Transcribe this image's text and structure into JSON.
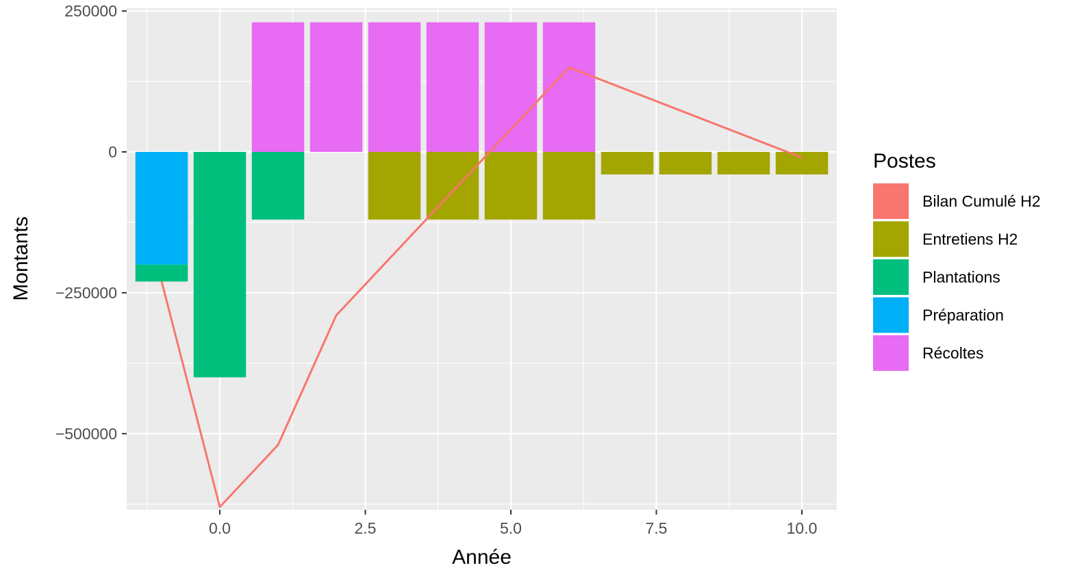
{
  "chart_data": {
    "type": "bar",
    "title": "",
    "xlabel": "Année",
    "ylabel": "Montants",
    "xlim": [
      -1.6,
      10.6
    ],
    "ylim": [
      -635000,
      255000
    ],
    "x_ticks": [
      {
        "value": 0,
        "label": "0.0"
      },
      {
        "value": 2.5,
        "label": "2.5"
      },
      {
        "value": 5,
        "label": "5.0"
      },
      {
        "value": 7.5,
        "label": "7.5"
      },
      {
        "value": 10,
        "label": "10.0"
      }
    ],
    "y_ticks": [
      {
        "value": 250000,
        "label": "250000"
      },
      {
        "value": 0,
        "label": "0"
      },
      {
        "value": -250000,
        "label": "−250000"
      },
      {
        "value": -500000,
        "label": "−500000"
      }
    ],
    "legend": {
      "title": "Postes",
      "position": "right",
      "entries": [
        {
          "name": "Bilan Cumulé H2",
          "color": "#F8766D"
        },
        {
          "name": "Entretiens H2",
          "color": "#A3A500"
        },
        {
          "name": "Plantations",
          "color": "#00BF7D"
        },
        {
          "name": "Préparation",
          "color": "#00B0F6"
        },
        {
          "name": "Récoltes",
          "color": "#E76BF3"
        }
      ]
    },
    "x": [
      -1,
      0,
      1,
      2,
      3,
      4,
      5,
      6,
      7,
      8,
      9,
      10
    ],
    "series": [
      {
        "name": "Entretiens H2",
        "color": "#A3A500",
        "kind": "bar",
        "values": [
          0,
          0,
          0,
          0,
          -120000,
          -120000,
          -120000,
          -120000,
          -40000,
          -40000,
          -40000,
          -40000
        ]
      },
      {
        "name": "Plantations",
        "color": "#00BF7D",
        "kind": "bar",
        "values": [
          -30000,
          -400000,
          -120000,
          0,
          0,
          0,
          0,
          0,
          0,
          0,
          0,
          0
        ]
      },
      {
        "name": "Préparation",
        "color": "#00B0F6",
        "kind": "bar",
        "values": [
          -200000,
          0,
          0,
          0,
          0,
          0,
          0,
          0,
          0,
          0,
          0,
          0
        ]
      },
      {
        "name": "Récoltes",
        "color": "#E76BF3",
        "kind": "bar",
        "values": [
          0,
          0,
          230000,
          230000,
          230000,
          230000,
          230000,
          230000,
          0,
          0,
          0,
          0
        ]
      },
      {
        "name": "Bilan Cumulé H2",
        "color": "#F8766D",
        "kind": "line",
        "points": [
          [
            -1,
            -230000
          ],
          [
            0,
            -630000
          ],
          [
            1,
            -520000
          ],
          [
            2,
            -290000
          ],
          [
            6,
            150000
          ],
          [
            10,
            -10000
          ]
        ]
      }
    ],
    "grid": true,
    "panel_background": "#EBEBEB",
    "grid_color": "#FFFFFF"
  }
}
